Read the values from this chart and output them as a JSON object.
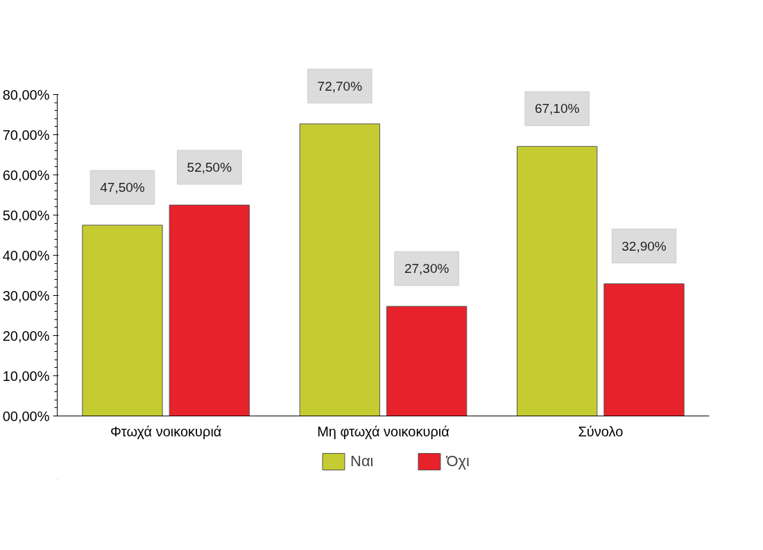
{
  "chart_data": {
    "type": "bar",
    "categories": [
      "Φτωχά νοικοκυριά",
      "Μη φτωχά νοικοκυριά",
      "Σύνολο"
    ],
    "series": [
      {
        "name": "Ναι",
        "color": "#c4cc32",
        "values": [
          47.5,
          72.7,
          67.1
        ],
        "value_labels": [
          "47,50%",
          "72,70%",
          "67,10%"
        ]
      },
      {
        "name": "Όχι",
        "color": "#e8222a",
        "values": [
          52.5,
          27.3,
          32.9
        ],
        "value_labels": [
          "52,50%",
          "27,30%",
          "32,90%"
        ]
      }
    ],
    "ylim": [
      0,
      80
    ],
    "yticks": [
      {
        "value": 0,
        "label": "00,00%"
      },
      {
        "value": 10,
        "label": "10,00%"
      },
      {
        "value": 20,
        "label": "20,00%"
      },
      {
        "value": 30,
        "label": "30,00%"
      },
      {
        "value": 40,
        "label": "40,00%"
      },
      {
        "value": 50,
        "label": "50,00%"
      },
      {
        "value": 60,
        "label": "60,00%"
      },
      {
        "value": 70,
        "label": "70,00%"
      },
      {
        "value": 80,
        "label": "80,00%"
      }
    ],
    "grid": false,
    "legend": "bottom"
  }
}
